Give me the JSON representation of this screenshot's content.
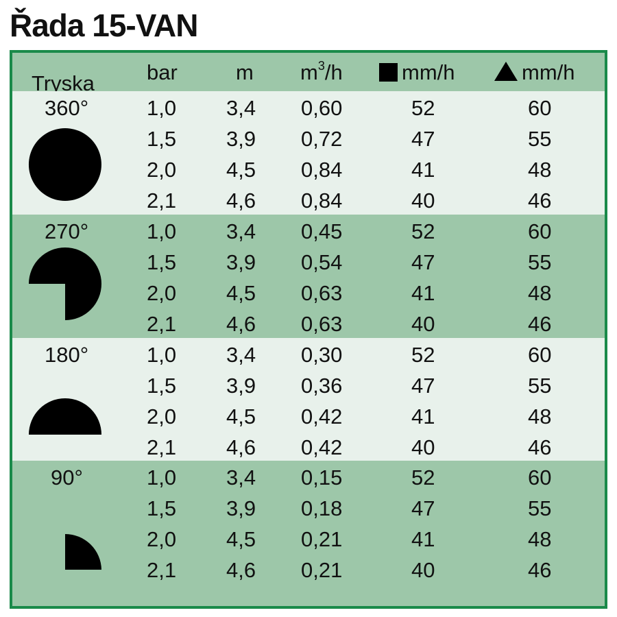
{
  "title": "Řada 15-VAN",
  "header": {
    "nozzle": "Tryska",
    "bar": "bar",
    "m": "m",
    "flow_base": "m",
    "flow_sup": "3",
    "flow_tail": "/h",
    "square_rate": "mm/h",
    "triangle_rate": "mm/h"
  },
  "groups": [
    {
      "angle": "360°",
      "icon": "full-circle-icon",
      "rows": [
        [
          "1,0",
          "3,4",
          "0,60",
          "52",
          "60"
        ],
        [
          "1,5",
          "3,9",
          "0,72",
          "47",
          "55"
        ],
        [
          "2,0",
          "4,5",
          "0,84",
          "41",
          "48"
        ],
        [
          "2,1",
          "4,6",
          "0,84",
          "40",
          "46"
        ]
      ]
    },
    {
      "angle": "270°",
      "icon": "three-quarter-circle-icon",
      "rows": [
        [
          "1,0",
          "3,4",
          "0,45",
          "52",
          "60"
        ],
        [
          "1,5",
          "3,9",
          "0,54",
          "47",
          "55"
        ],
        [
          "2,0",
          "4,5",
          "0,63",
          "41",
          "48"
        ],
        [
          "2,1",
          "4,6",
          "0,63",
          "40",
          "46"
        ]
      ]
    },
    {
      "angle": "180°",
      "icon": "half-circle-icon",
      "rows": [
        [
          "1,0",
          "3,4",
          "0,30",
          "52",
          "60"
        ],
        [
          "1,5",
          "3,9",
          "0,36",
          "47",
          "55"
        ],
        [
          "2,0",
          "4,5",
          "0,42",
          "41",
          "48"
        ],
        [
          "2,1",
          "4,6",
          "0,42",
          "40",
          "46"
        ]
      ]
    },
    {
      "angle": "90°",
      "icon": "quarter-circle-icon",
      "rows": [
        [
          "1,0",
          "3,4",
          "0,15",
          "52",
          "60"
        ],
        [
          "1,5",
          "3,9",
          "0,18",
          "47",
          "55"
        ],
        [
          "2,0",
          "4,5",
          "0,21",
          "41",
          "48"
        ],
        [
          "2,1",
          "4,6",
          "0,21",
          "40",
          "46"
        ]
      ]
    }
  ],
  "colors": {
    "border": "#1a8a4a",
    "band_dark": "#9dc7a9",
    "band_light": "#e8f1eb"
  }
}
